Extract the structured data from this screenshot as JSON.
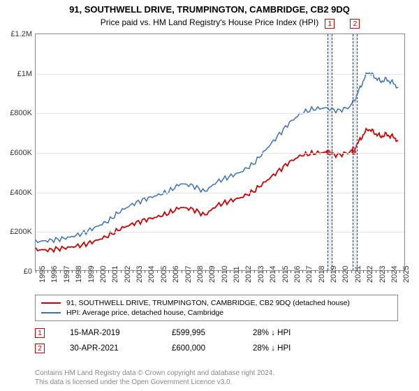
{
  "title": "91, SOUTHWELL DRIVE, TRUMPINGTON, CAMBRIDGE, CB2 9DQ",
  "subtitle": "Price paid vs. HM Land Registry's House Price Index (HPI)",
  "chart": {
    "type": "line",
    "background_color": "#ffffff",
    "grid_color": "#e5e5e5",
    "border_color": "#888888",
    "xlim": [
      1995,
      2025.5
    ],
    "ylim": [
      0,
      1200000
    ],
    "ytick_step": 200000,
    "yticks": [
      {
        "v": 0,
        "label": "£0"
      },
      {
        "v": 200000,
        "label": "£200K"
      },
      {
        "v": 400000,
        "label": "£400K"
      },
      {
        "v": 600000,
        "label": "£600K"
      },
      {
        "v": 800000,
        "label": "£800K"
      },
      {
        "v": 1000000,
        "label": "£1M"
      },
      {
        "v": 1200000,
        "label": "£1.2M"
      }
    ],
    "xticks": [
      1995,
      1996,
      1997,
      1998,
      1999,
      2000,
      2001,
      2002,
      2003,
      2004,
      2005,
      2006,
      2007,
      2008,
      2009,
      2010,
      2011,
      2012,
      2013,
      2014,
      2015,
      2016,
      2017,
      2018,
      2019,
      2020,
      2021,
      2022,
      2023,
      2024,
      2025
    ],
    "series": [
      {
        "name": "property",
        "legend": "91, SOUTHWELL DRIVE, TRUMPINGTON, CAMBRIDGE, CB2 9DQ (detached house)",
        "color": "#cc0000",
        "line_width": 1.8,
        "data": [
          [
            1995,
            105000
          ],
          [
            1996,
            102000
          ],
          [
            1997,
            110000
          ],
          [
            1998,
            118000
          ],
          [
            1999,
            130000
          ],
          [
            2000,
            150000
          ],
          [
            2001,
            175000
          ],
          [
            2002,
            210000
          ],
          [
            2003,
            235000
          ],
          [
            2004,
            255000
          ],
          [
            2005,
            270000
          ],
          [
            2006,
            290000
          ],
          [
            2007,
            320000
          ],
          [
            2008,
            310000
          ],
          [
            2009,
            280000
          ],
          [
            2010,
            330000
          ],
          [
            2011,
            350000
          ],
          [
            2012,
            370000
          ],
          [
            2013,
            400000
          ],
          [
            2014,
            450000
          ],
          [
            2015,
            500000
          ],
          [
            2016,
            550000
          ],
          [
            2017,
            585000
          ],
          [
            2018,
            595000
          ],
          [
            2019,
            600000
          ],
          [
            2020,
            585000
          ],
          [
            2021,
            600000
          ],
          [
            2021.5,
            630000
          ],
          [
            2022,
            680000
          ],
          [
            2022.5,
            720000
          ],
          [
            2023,
            700000
          ],
          [
            2023.5,
            680000
          ],
          [
            2024,
            690000
          ],
          [
            2024.5,
            680000
          ],
          [
            2025,
            660000
          ]
        ]
      },
      {
        "name": "hpi",
        "legend": "HPI: Average price, detached house, Cambridge",
        "color": "#3b6fb6",
        "line_width": 1.5,
        "data": [
          [
            1995,
            145000
          ],
          [
            1996,
            150000
          ],
          [
            1997,
            158000
          ],
          [
            1998,
            170000
          ],
          [
            1999,
            190000
          ],
          [
            2000,
            220000
          ],
          [
            2001,
            250000
          ],
          [
            2002,
            300000
          ],
          [
            2003,
            335000
          ],
          [
            2004,
            360000
          ],
          [
            2005,
            380000
          ],
          [
            2006,
            400000
          ],
          [
            2007,
            440000
          ],
          [
            2008,
            430000
          ],
          [
            2009,
            400000
          ],
          [
            2010,
            450000
          ],
          [
            2011,
            475000
          ],
          [
            2012,
            500000
          ],
          [
            2013,
            540000
          ],
          [
            2014,
            610000
          ],
          [
            2015,
            680000
          ],
          [
            2016,
            750000
          ],
          [
            2017,
            800000
          ],
          [
            2018,
            820000
          ],
          [
            2019,
            825000
          ],
          [
            2020,
            810000
          ],
          [
            2021,
            830000
          ],
          [
            2021.5,
            880000
          ],
          [
            2022,
            950000
          ],
          [
            2022.5,
            1010000
          ],
          [
            2023,
            985000
          ],
          [
            2023.5,
            960000
          ],
          [
            2024,
            970000
          ],
          [
            2024.5,
            955000
          ],
          [
            2025,
            930000
          ]
        ]
      }
    ],
    "markers": [
      {
        "id": "1",
        "x_band": [
          2019.05,
          2019.45
        ],
        "dot": [
          2019.2,
          600000
        ]
      },
      {
        "id": "2",
        "x_band": [
          2021.1,
          2021.55
        ],
        "dot": [
          2021.33,
          600000
        ]
      }
    ],
    "label_fontsize": 11
  },
  "legend": {
    "rows": [
      {
        "color": "#cc0000",
        "label_path": "chart.series.0.legend"
      },
      {
        "color": "#3b6fb6",
        "label_path": "chart.series.1.legend"
      }
    ]
  },
  "transactions": [
    {
      "id": "1",
      "date": "15-MAR-2019",
      "price": "£599,995",
      "delta": "28% ↓ HPI"
    },
    {
      "id": "2",
      "date": "30-APR-2021",
      "price": "£600,000",
      "delta": "28% ↓ HPI"
    }
  ],
  "attribution": {
    "line1": "Contains HM Land Registry data © Crown copyright and database right 2024.",
    "line2": "This data is licensed under the Open Government Licence v3.0."
  },
  "colors": {
    "marker_border": "#cc0000",
    "text": "#333333",
    "muted": "#888888"
  }
}
